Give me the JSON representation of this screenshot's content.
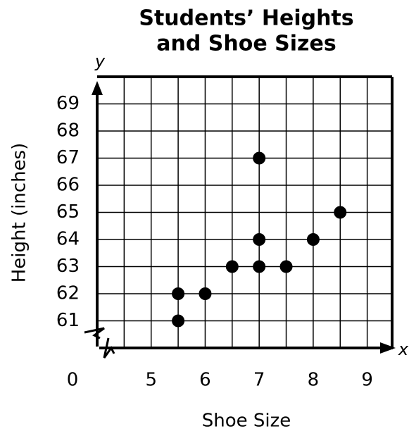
{
  "chart_data": {
    "type": "scatter",
    "title": [
      "Students’ Heights",
      "and Shoe Sizes"
    ],
    "x_label": "Shoe Size",
    "y_label": "Height (inches)",
    "x_axis_name": "x",
    "y_axis_name": "y",
    "origin_label": "0",
    "x": [
      5.5,
      5.5,
      6,
      6.5,
      7,
      7,
      7,
      7.5,
      8,
      8.5
    ],
    "series": [
      {
        "color": "#000000",
        "values": [
          62,
          61,
          62,
          63,
          67,
          64,
          63,
          63,
          64,
          65
        ]
      }
    ],
    "xlim": [
      4,
      9.5
    ],
    "ylim": [
      60,
      70
    ],
    "xticks": [
      5,
      6,
      7,
      8,
      9
    ],
    "yticks": [
      61,
      62,
      63,
      64,
      65,
      66,
      67,
      68,
      69
    ],
    "grid": true
  }
}
